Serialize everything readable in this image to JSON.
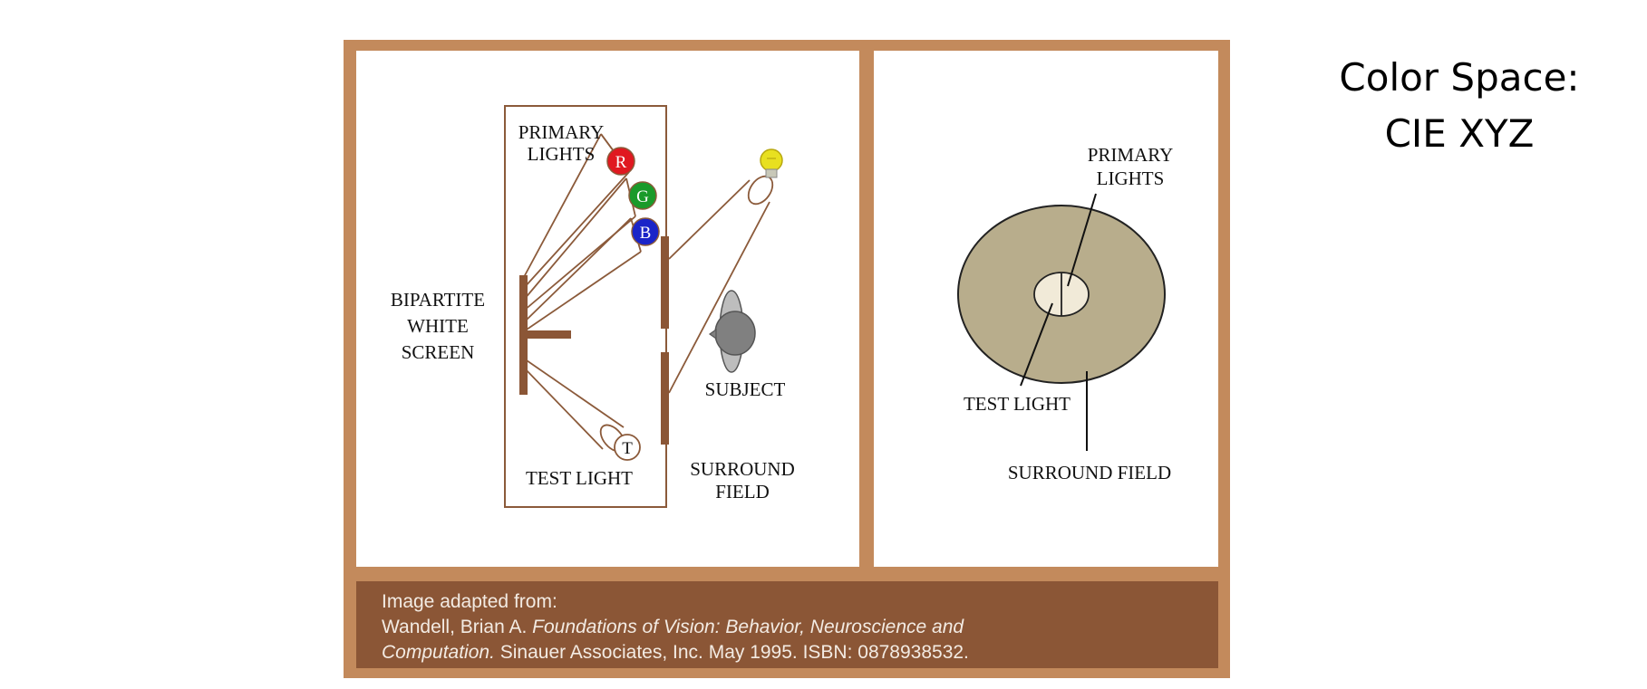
{
  "slide": {
    "title_line1": "Color Space:",
    "title_line2": "CIE XYZ"
  },
  "left_diagram": {
    "primary_lights_line1": "PRIMARY",
    "primary_lights_line2": "LIGHTS",
    "lamp_r": "R",
    "lamp_g": "G",
    "lamp_b": "B",
    "lamp_t": "T",
    "screen_line1": "BIPARTITE",
    "screen_line2": "WHITE",
    "screen_line3": "SCREEN",
    "subject": "SUBJECT",
    "test_light": "TEST LIGHT",
    "surround_line1": "SURROUND",
    "surround_line2": "FIELD",
    "colors": {
      "red": "#e01820",
      "green": "#1a9a2a",
      "blue": "#1a24c8",
      "bulb": "#e8e020",
      "line": "#8b5a3a",
      "screen": "#8b5636"
    }
  },
  "right_diagram": {
    "primary_lights_line1": "PRIMARY",
    "primary_lights_line2": "LIGHTS",
    "test_light": "TEST LIGHT",
    "surround_field": "SURROUND FIELD",
    "colors": {
      "surround": "#b8ad8c",
      "center": "#f1ead8"
    }
  },
  "caption": {
    "line1": "Image adapted from:",
    "author": "Wandell, Brian A. ",
    "book_part1": "Foundations of Vision: Behavior, Neuroscience and",
    "book_part2": "Computation.",
    "publisher": " Sinauer Associates, Inc. May 1995. ISBN: 0878938532."
  },
  "colors": {
    "frame": "#c38a5c",
    "caption_bg": "#8b5636",
    "caption_text": "#f3ebe3"
  }
}
